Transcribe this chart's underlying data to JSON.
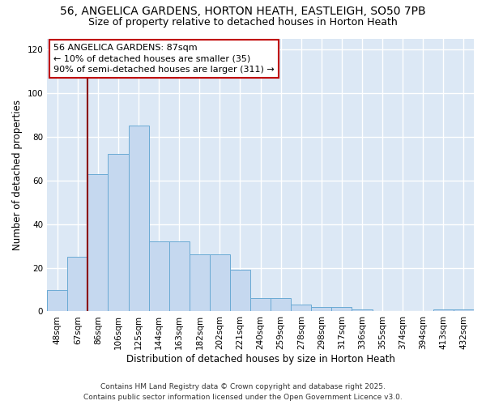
{
  "title_line1": "56, ANGELICA GARDENS, HORTON HEATH, EASTLEIGH, SO50 7PB",
  "title_line2": "Size of property relative to detached houses in Horton Heath",
  "xlabel": "Distribution of detached houses by size in Horton Heath",
  "ylabel": "Number of detached properties",
  "categories": [
    "48sqm",
    "67sqm",
    "86sqm",
    "106sqm",
    "125sqm",
    "144sqm",
    "163sqm",
    "182sqm",
    "202sqm",
    "221sqm",
    "240sqm",
    "259sqm",
    "278sqm",
    "298sqm",
    "317sqm",
    "336sqm",
    "355sqm",
    "374sqm",
    "394sqm",
    "413sqm",
    "432sqm"
  ],
  "values": [
    10,
    25,
    63,
    72,
    85,
    32,
    32,
    26,
    26,
    19,
    6,
    6,
    3,
    2,
    2,
    1,
    0,
    0,
    0,
    1,
    1
  ],
  "bar_color": "#c5d8ef",
  "bar_edgecolor": "#6aaad4",
  "vline_x": 1.5,
  "vline_color": "#8b0000",
  "annotation_text": "56 ANGELICA GARDENS: 87sqm\n← 10% of detached houses are smaller (35)\n90% of semi-detached houses are larger (311) →",
  "annotation_box_color": "white",
  "annotation_box_edgecolor": "#c00000",
  "ylim": [
    0,
    125
  ],
  "yticks": [
    0,
    20,
    40,
    60,
    80,
    100,
    120
  ],
  "background_color": "#dce8f5",
  "grid_color": "white",
  "footer_line1": "Contains HM Land Registry data © Crown copyright and database right 2025.",
  "footer_line2": "Contains public sector information licensed under the Open Government Licence v3.0.",
  "title_fontsize": 10,
  "subtitle_fontsize": 9,
  "axis_label_fontsize": 8.5,
  "tick_fontsize": 7.5,
  "annotation_fontsize": 8,
  "footer_fontsize": 6.5
}
